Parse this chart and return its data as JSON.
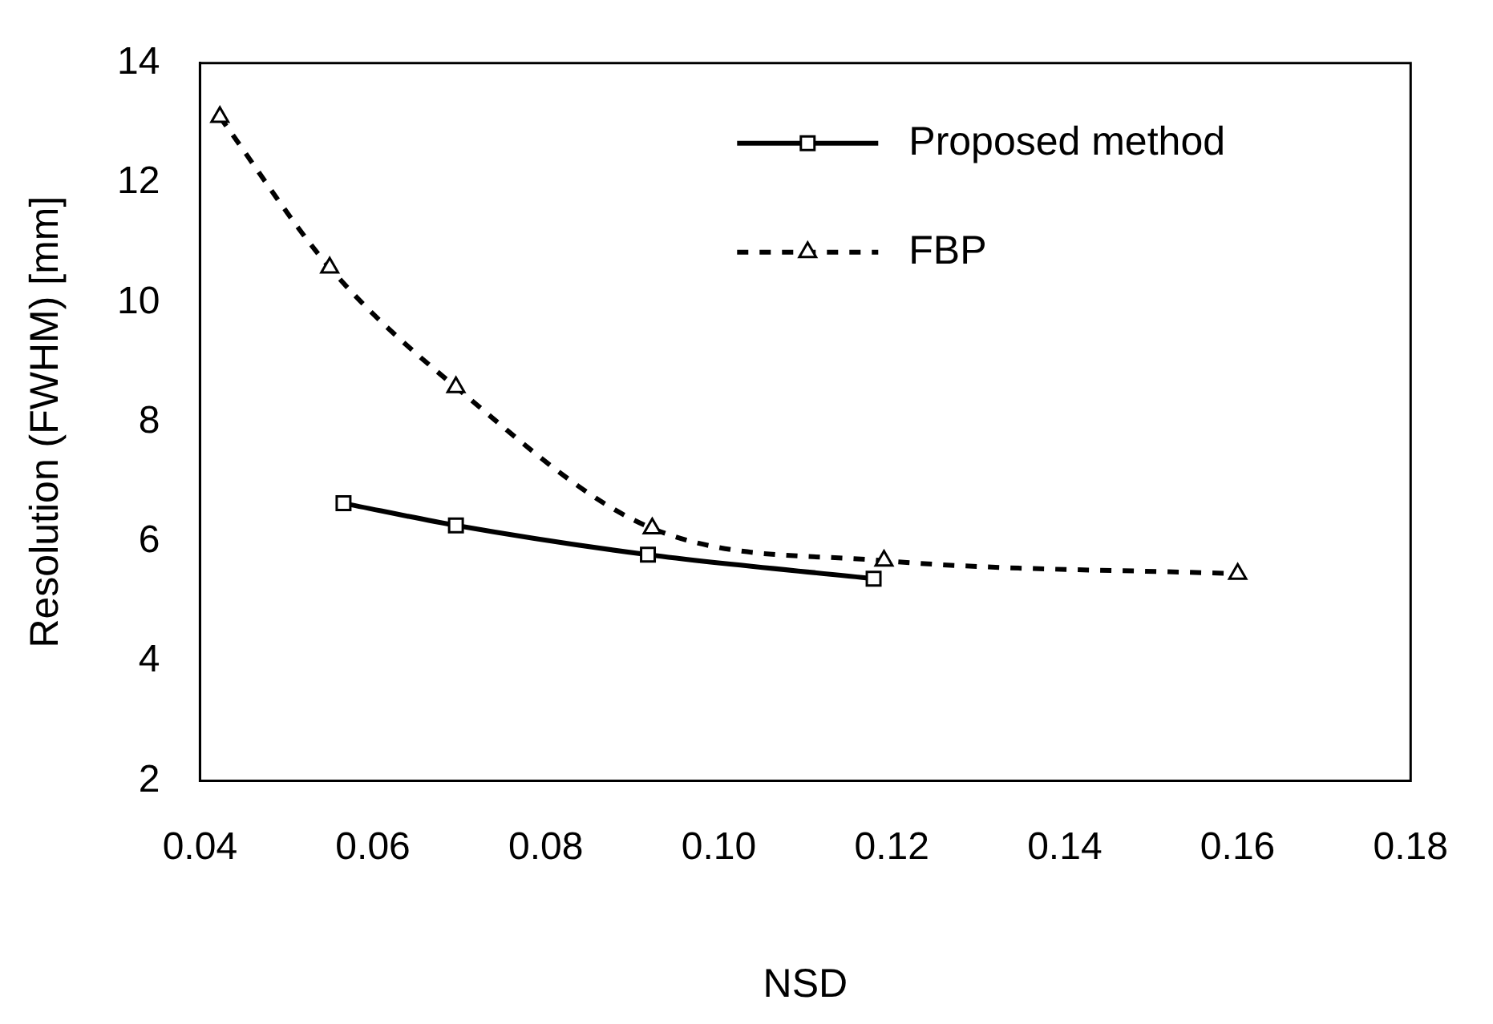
{
  "chart_data": {
    "type": "line",
    "xlabel": "NSD",
    "ylabel": "Resolution (FWHM) [mm]",
    "xlim": [
      0.04,
      0.18
    ],
    "xticks": [
      {
        "value": 0.04,
        "label": "0.04"
      },
      {
        "value": 0.06,
        "label": "0.06"
      },
      {
        "value": 0.08,
        "label": "0.08"
      },
      {
        "value": 0.1,
        "label": "0.10"
      },
      {
        "value": 0.12,
        "label": "0.12"
      },
      {
        "value": 0.14,
        "label": "0.14"
      },
      {
        "value": 0.16,
        "label": "0.16"
      },
      {
        "value": 0.18,
        "label": "0.18"
      }
    ],
    "ylim": [
      2,
      14
    ],
    "yticks": [
      2,
      4,
      6,
      8,
      10,
      12,
      14
    ],
    "grid": false,
    "legend": "top right",
    "series": [
      {
        "name": "Proposed method",
        "color": "#000000",
        "marker": "square",
        "line_style": "solid",
        "x": [
          0.0566,
          0.0696,
          0.0918,
          0.1179
        ],
        "values": [
          6.64,
          6.27,
          5.78,
          5.38
        ]
      },
      {
        "name": "FBP",
        "color": "#000000",
        "marker": "triangle",
        "line_style": "dashed",
        "x": [
          0.0423,
          0.055,
          0.0696,
          0.0923,
          0.1191,
          0.16
        ],
        "values": [
          13.1,
          10.58,
          8.58,
          6.22,
          5.68,
          5.46
        ]
      }
    ]
  }
}
